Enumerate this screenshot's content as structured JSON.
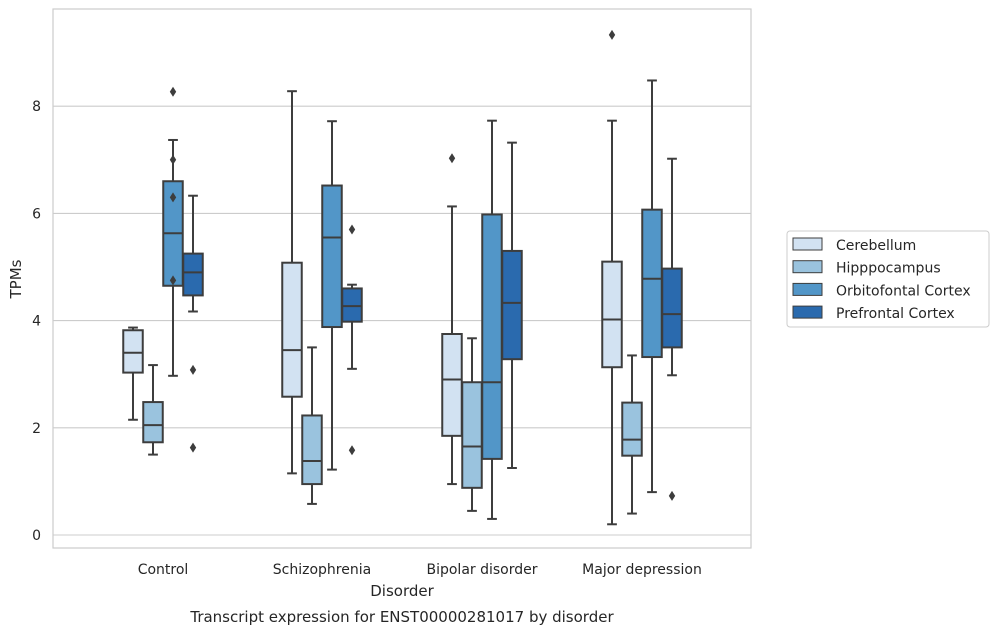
{
  "chart_data": {
    "type": "box",
    "caption": "Transcript expression for ENST00000281017 by disorder",
    "xlabel": "Disorder",
    "ylabel": "TPMs",
    "ylim": [
      -0.25,
      9.8
    ],
    "yticks": [
      0,
      2,
      4,
      6,
      8
    ],
    "grid": true,
    "legend_placement": "right",
    "categories": [
      "Control",
      "Schizophrenia",
      "Bipolar disorder",
      "Major depression"
    ],
    "series": [
      {
        "name": "Cerebellum",
        "color": "#d2e2f2",
        "boxes": [
          {
            "whislo": 2.15,
            "q1": 3.03,
            "med": 3.4,
            "q3": 3.82,
            "whishi": 3.87,
            "fliers": []
          },
          {
            "whislo": 1.15,
            "q1": 2.58,
            "med": 3.45,
            "q3": 5.08,
            "whishi": 8.28,
            "fliers": []
          },
          {
            "whislo": 0.95,
            "q1": 1.85,
            "med": 2.9,
            "q3": 3.75,
            "whishi": 6.13,
            "fliers": [
              7.03
            ]
          },
          {
            "whislo": 0.2,
            "q1": 3.13,
            "med": 4.02,
            "q3": 5.1,
            "whishi": 7.73,
            "fliers": [
              9.33
            ]
          }
        ]
      },
      {
        "name": "Hipppocampus",
        "color": "#9ac3de",
        "boxes": [
          {
            "whislo": 1.5,
            "q1": 1.73,
            "med": 2.05,
            "q3": 2.48,
            "whishi": 3.17,
            "fliers": []
          },
          {
            "whislo": 0.58,
            "q1": 0.95,
            "med": 1.38,
            "q3": 2.23,
            "whishi": 3.5,
            "fliers": []
          },
          {
            "whislo": 0.45,
            "q1": 0.88,
            "med": 1.65,
            "q3": 2.85,
            "whishi": 3.67,
            "fliers": []
          },
          {
            "whislo": 0.4,
            "q1": 1.48,
            "med": 1.78,
            "q3": 2.47,
            "whishi": 3.35,
            "fliers": []
          }
        ]
      },
      {
        "name": "Orbitofontal Cortex",
        "color": "#5296c8",
        "boxes": [
          {
            "whislo": 2.97,
            "q1": 4.65,
            "med": 5.63,
            "q3": 6.6,
            "whishi": 7.37,
            "fliers": [
              8.27,
              7.0,
              6.3,
              4.75
            ]
          },
          {
            "whislo": 1.22,
            "q1": 3.88,
            "med": 5.55,
            "q3": 6.52,
            "whishi": 7.72,
            "fliers": []
          },
          {
            "whislo": 0.3,
            "q1": 1.42,
            "med": 2.85,
            "q3": 5.98,
            "whishi": 7.73,
            "fliers": []
          },
          {
            "whislo": 0.8,
            "q1": 3.32,
            "med": 4.78,
            "q3": 6.07,
            "whishi": 8.48,
            "fliers": []
          }
        ]
      },
      {
        "name": "Prefrontal Cortex",
        "color": "#2a6aae",
        "boxes": [
          {
            "whislo": 4.17,
            "q1": 4.47,
            "med": 4.9,
            "q3": 5.25,
            "whishi": 6.33,
            "fliers": [
              3.08,
              1.63
            ]
          },
          {
            "whislo": 3.1,
            "q1": 3.98,
            "med": 4.27,
            "q3": 4.6,
            "whishi": 4.67,
            "fliers": [
              5.7,
              1.58
            ]
          },
          {
            "whislo": 1.25,
            "q1": 3.28,
            "med": 4.33,
            "q3": 5.3,
            "whishi": 7.32,
            "fliers": []
          },
          {
            "whislo": 2.98,
            "q1": 3.5,
            "med": 4.12,
            "q3": 4.97,
            "whishi": 7.02,
            "fliers": [
              0.73
            ]
          }
        ]
      }
    ]
  }
}
